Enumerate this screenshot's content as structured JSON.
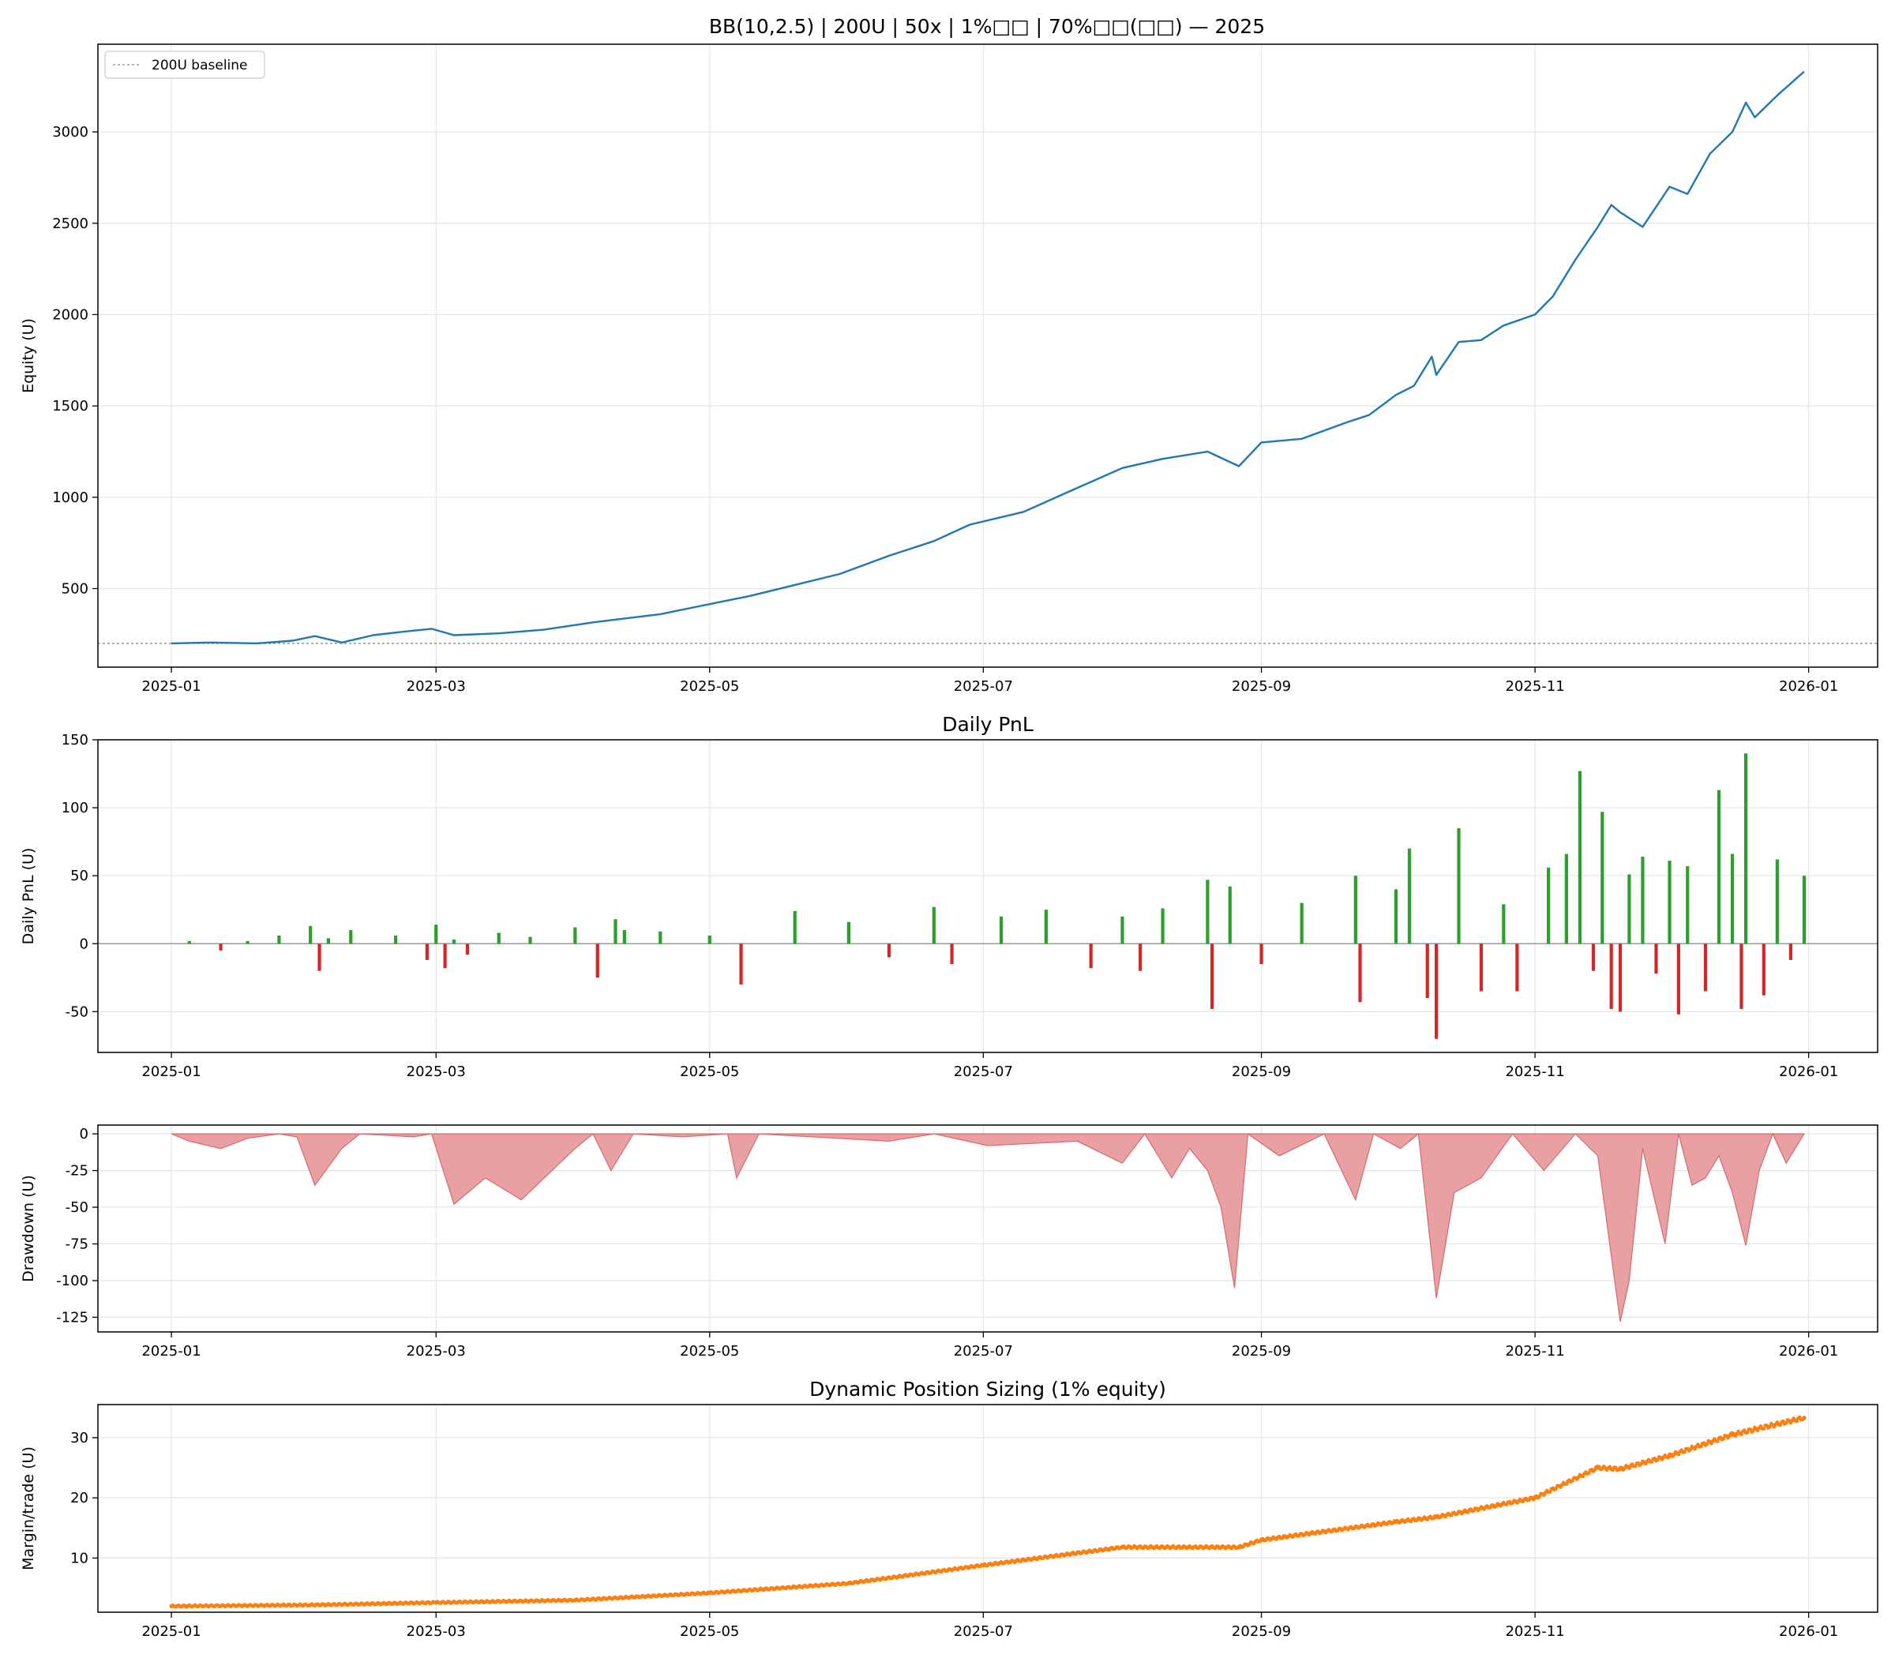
{
  "figure": {
    "title": "BB(10,2.5) | 200U | 50x | 1%□□ | 70%□□(□□) — 2025",
    "x_ticks": [
      "2025-01",
      "2025-03",
      "2025-05",
      "2025-07",
      "2025-09",
      "2025-11",
      "2026-01"
    ]
  },
  "colors": {
    "equity_line": "#1f77b4",
    "bar_positive": "#2ca02c",
    "bar_negative": "#d62728",
    "drawdown_fill": "#e8a0a2",
    "drawdown_edge": "#d36b6e",
    "margin_line": "#ff7f0e",
    "grid": "#e5e5e5",
    "baseline": "#8a8a8a"
  },
  "chart_data": [
    {
      "type": "line",
      "panel": "equity",
      "title": "BB(10,2.5) | 200U | 50x | 1%□□ | 70%□□(□□) — 2025",
      "xlabel": "",
      "ylabel": "Equity (U)",
      "x_range": [
        "2025-01-01",
        "2025-12-31"
      ],
      "ylim": [
        70,
        3480
      ],
      "y_ticks": [
        500,
        1000,
        1500,
        2000,
        2500,
        3000
      ],
      "grid": true,
      "legend": {
        "position": "top-left",
        "entries": [
          "200U baseline"
        ]
      },
      "baseline": {
        "name": "200U baseline",
        "y": 200
      },
      "series": [
        {
          "x": [
            "2025-01-01",
            "2025-01-10",
            "2025-01-20",
            "2025-01-28",
            "2025-02-02",
            "2025-02-08",
            "2025-02-15",
            "2025-02-22",
            "2025-02-28",
            "2025-03-05",
            "2025-03-15",
            "2025-03-25",
            "2025-04-05",
            "2025-04-10",
            "2025-04-20",
            "2025-04-30",
            "2025-05-10",
            "2025-05-20",
            "2025-05-30",
            "2025-06-10",
            "2025-06-20",
            "2025-06-28",
            "2025-07-10",
            "2025-07-20",
            "2025-08-01",
            "2025-08-10",
            "2025-08-20",
            "2025-08-27",
            "2025-09-01",
            "2025-09-10",
            "2025-09-20",
            "2025-09-25",
            "2025-10-01",
            "2025-10-05",
            "2025-10-09",
            "2025-10-10",
            "2025-10-15",
            "2025-10-20",
            "2025-10-25",
            "2025-11-01",
            "2025-11-05",
            "2025-11-10",
            "2025-11-15",
            "2025-11-18",
            "2025-11-20",
            "2025-11-25",
            "2025-12-01",
            "2025-12-05",
            "2025-12-10",
            "2025-12-15",
            "2025-12-18",
            "2025-12-20",
            "2025-12-25",
            "2025-12-31"
          ],
          "y": [
            200,
            205,
            200,
            215,
            240,
            205,
            245,
            265,
            280,
            245,
            255,
            275,
            315,
            330,
            360,
            410,
            460,
            520,
            580,
            680,
            760,
            850,
            920,
            1030,
            1160,
            1210,
            1250,
            1170,
            1300,
            1320,
            1410,
            1450,
            1560,
            1610,
            1770,
            1670,
            1850,
            1860,
            1940,
            2000,
            2100,
            2300,
            2480,
            2600,
            2560,
            2480,
            2700,
            2660,
            2880,
            3000,
            3160,
            3080,
            3200,
            3330
          ]
        }
      ]
    },
    {
      "type": "bar",
      "panel": "daily_pnl",
      "title": "Daily PnL",
      "xlabel": "",
      "ylabel": "Daily PnL (U)",
      "x_range": [
        "2025-01-01",
        "2025-12-31"
      ],
      "ylim": [
        -80,
        150
      ],
      "y_ticks": [
        -50,
        0,
        50,
        100,
        150
      ],
      "grid": true,
      "series": [
        {
          "x": [
            "2025-01-05",
            "2025-01-12",
            "2025-01-18",
            "2025-01-25",
            "2025-02-01",
            "2025-02-03",
            "2025-02-05",
            "2025-02-10",
            "2025-02-20",
            "2025-02-27",
            "2025-03-01",
            "2025-03-03",
            "2025-03-05",
            "2025-03-08",
            "2025-03-15",
            "2025-03-22",
            "2025-04-01",
            "2025-04-06",
            "2025-04-10",
            "2025-04-12",
            "2025-04-20",
            "2025-05-01",
            "2025-05-08",
            "2025-05-20",
            "2025-06-01",
            "2025-06-10",
            "2025-06-20",
            "2025-06-24",
            "2025-07-05",
            "2025-07-15",
            "2025-07-25",
            "2025-08-01",
            "2025-08-05",
            "2025-08-10",
            "2025-08-20",
            "2025-08-21",
            "2025-08-25",
            "2025-09-01",
            "2025-09-10",
            "2025-09-22",
            "2025-09-23",
            "2025-10-01",
            "2025-10-04",
            "2025-10-08",
            "2025-10-10",
            "2025-10-15",
            "2025-10-20",
            "2025-10-25",
            "2025-10-28",
            "2025-11-04",
            "2025-11-08",
            "2025-11-11",
            "2025-11-14",
            "2025-11-16",
            "2025-11-18",
            "2025-11-20",
            "2025-11-22",
            "2025-11-25",
            "2025-11-28",
            "2025-12-01",
            "2025-12-03",
            "2025-12-05",
            "2025-12-09",
            "2025-12-12",
            "2025-12-15",
            "2025-12-17",
            "2025-12-18",
            "2025-12-22",
            "2025-12-25",
            "2025-12-28",
            "2025-12-31"
          ],
          "y": [
            2,
            -5,
            2,
            6,
            13,
            -20,
            4,
            10,
            6,
            -12,
            14,
            -18,
            3,
            -8,
            8,
            5,
            12,
            -25,
            18,
            10,
            9,
            6,
            -30,
            24,
            16,
            -10,
            27,
            -15,
            20,
            25,
            -18,
            20,
            -20,
            26,
            47,
            -48,
            42,
            -15,
            30,
            50,
            -43,
            40,
            70,
            -40,
            -70,
            85,
            -35,
            29,
            -35,
            56,
            66,
            127,
            -20,
            97,
            -48,
            -50,
            51,
            64,
            -22,
            61,
            -52,
            57,
            -35,
            113,
            66,
            -48,
            140,
            -38,
            62,
            -12,
            50
          ]
        }
      ]
    },
    {
      "type": "area",
      "panel": "drawdown",
      "title": "",
      "xlabel": "",
      "ylabel": "Drawdown (U)",
      "x_range": [
        "2025-01-01",
        "2025-12-31"
      ],
      "ylim": [
        -135,
        6
      ],
      "y_ticks": [
        -125,
        -100,
        -75,
        -50,
        -25,
        0
      ],
      "grid": true,
      "series": [
        {
          "x": [
            "2025-01-01",
            "2025-01-05",
            "2025-01-12",
            "2025-01-18",
            "2025-01-25",
            "2025-01-29",
            "2025-02-02",
            "2025-02-08",
            "2025-02-12",
            "2025-02-24",
            "2025-02-28",
            "2025-03-05",
            "2025-03-12",
            "2025-03-20",
            "2025-04-01",
            "2025-04-05",
            "2025-04-09",
            "2025-04-14",
            "2025-04-25",
            "2025-05-05",
            "2025-05-07",
            "2025-05-12",
            "2025-06-10",
            "2025-06-20",
            "2025-07-02",
            "2025-07-22",
            "2025-08-01",
            "2025-08-06",
            "2025-08-12",
            "2025-08-16",
            "2025-08-20",
            "2025-08-23",
            "2025-08-26",
            "2025-08-29",
            "2025-09-05",
            "2025-09-15",
            "2025-09-22",
            "2025-09-26",
            "2025-10-02",
            "2025-10-06",
            "2025-10-10",
            "2025-10-14",
            "2025-10-20",
            "2025-10-27",
            "2025-11-03",
            "2025-11-10",
            "2025-11-15",
            "2025-11-20",
            "2025-11-22",
            "2025-11-25",
            "2025-11-30",
            "2025-12-03",
            "2025-12-06",
            "2025-12-09",
            "2025-12-12",
            "2025-12-15",
            "2025-12-18",
            "2025-12-21",
            "2025-12-24",
            "2025-12-27",
            "2025-12-31"
          ],
          "y": [
            0,
            -5,
            -10,
            -3,
            0,
            -2,
            -35,
            -10,
            0,
            -2,
            0,
            -48,
            -30,
            -45,
            -10,
            0,
            -25,
            0,
            -2,
            0,
            -30,
            0,
            -5,
            0,
            -8,
            -5,
            -20,
            0,
            -30,
            -10,
            -25,
            -50,
            -105,
            0,
            -15,
            0,
            -45,
            0,
            -10,
            0,
            -112,
            -40,
            -30,
            0,
            -25,
            0,
            -15,
            -128,
            -100,
            -10,
            -75,
            0,
            -35,
            -30,
            -15,
            -40,
            -76,
            -25,
            0,
            -20,
            0
          ]
        }
      ]
    },
    {
      "type": "scatter",
      "panel": "margin",
      "title": "Dynamic Position Sizing (1% equity)",
      "xlabel": "",
      "ylabel": "Margin/trade (U)",
      "x_range": [
        "2025-01-01",
        "2025-12-31"
      ],
      "ylim": [
        1,
        35.5
      ],
      "y_ticks": [
        10,
        20,
        30
      ],
      "grid": true,
      "series": [
        {
          "x": [
            "2025-01-01",
            "2025-02-01",
            "2025-03-01",
            "2025-04-01",
            "2025-05-01",
            "2025-06-01",
            "2025-07-01",
            "2025-08-01",
            "2025-08-27",
            "2025-09-01",
            "2025-10-01",
            "2025-10-10",
            "2025-11-01",
            "2025-11-15",
            "2025-11-20",
            "2025-12-01",
            "2025-12-15",
            "2025-12-31"
          ],
          "y": [
            2.0,
            2.2,
            2.6,
            3.0,
            4.2,
            5.8,
            8.8,
            11.8,
            11.8,
            13.0,
            16.0,
            16.8,
            20.0,
            25.0,
            24.8,
            27.0,
            30.5,
            33.3
          ]
        }
      ]
    }
  ]
}
